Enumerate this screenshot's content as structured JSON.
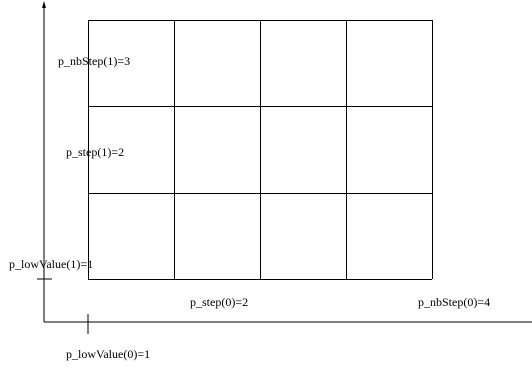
{
  "diagram": {
    "grid": {
      "columns": 4,
      "rows": 3
    },
    "labels": {
      "nbstep_1": "p_nbStep(1)=3",
      "step_1": "p_step(1)=2",
      "lowvalue_1": "p_lowValue(1)=1",
      "step_0": "p_step(0)=2",
      "nbstep_0": "p_nbStep(0)=4",
      "lowvalue_0": "p_lowValue(0)=1"
    },
    "colors": {
      "line": "#000000",
      "background": "#ffffff"
    }
  }
}
